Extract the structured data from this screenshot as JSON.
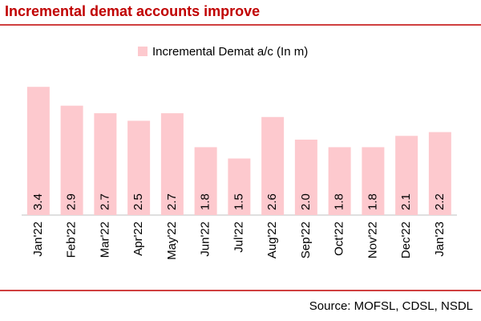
{
  "chart_data": {
    "type": "bar",
    "title": "Incremental demat accounts improve",
    "legend": "Incremental Demat a/c (In m)",
    "categories": [
      "Jan'22",
      "Feb'22",
      "Mar'22",
      "Apr'22",
      "May'22",
      "Jun'22",
      "Jul'22",
      "Aug'22",
      "Sep'22",
      "Oct'22",
      "Nov'22",
      "Dec'22",
      "Jan'23"
    ],
    "values": [
      3.4,
      2.9,
      2.7,
      2.5,
      2.7,
      1.8,
      1.5,
      2.6,
      2.0,
      1.8,
      1.8,
      2.1,
      2.2
    ],
    "value_labels": [
      "3.4",
      "2.9",
      "2.7",
      "2.5",
      "2.7",
      "1.8",
      "1.5",
      "2.6",
      "2.0",
      "1.8",
      "1.8",
      "2.1",
      "2.2"
    ],
    "color": "#fdc9ce",
    "source": "Source: MOFSL, CDSL, NSDL"
  }
}
